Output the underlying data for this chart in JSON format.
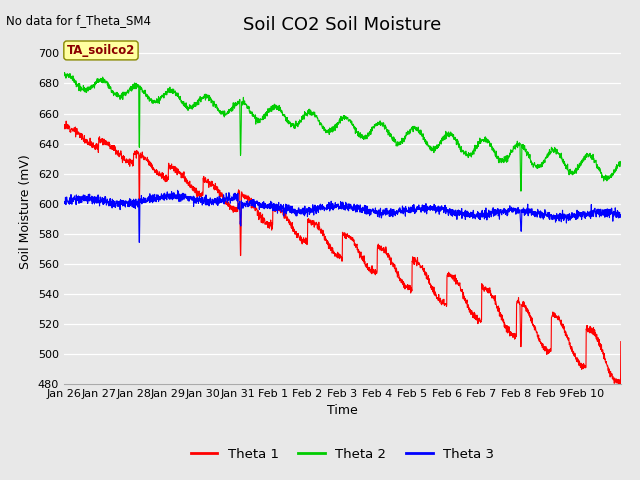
{
  "title": "Soil CO2 Soil Moisture",
  "no_data_text": "No data for f_Theta_SM4",
  "ylabel": "Soil Moisture (mV)",
  "xlabel": "Time",
  "legend_label": "TA_soilco2",
  "ylim": [
    480,
    710
  ],
  "yticks": [
    480,
    500,
    520,
    540,
    560,
    580,
    600,
    620,
    640,
    660,
    680,
    700
  ],
  "xtick_labels": [
    "Jan 26",
    "Jan 27",
    "Jan 28",
    "Jan 29",
    "Jan 30",
    "Jan 31",
    "Feb 1",
    "Feb 2",
    "Feb 3",
    "Feb 4",
    "Feb 5",
    "Feb 6",
    "Feb 7",
    "Feb 8",
    "Feb 9",
    "Feb 10"
  ],
  "line_colors": {
    "theta1": "#ff0000",
    "theta2": "#00cc00",
    "theta3": "#0000ff"
  },
  "legend_labels": [
    "Theta 1",
    "Theta 2",
    "Theta 3"
  ],
  "bg_color": "#e8e8e8",
  "title_fontsize": 13,
  "axis_label_fontsize": 9,
  "tick_fontsize": 8
}
